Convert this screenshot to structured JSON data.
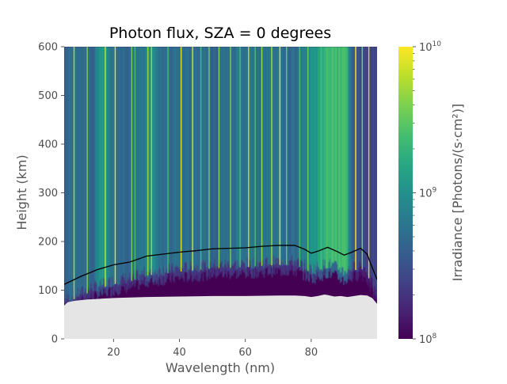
{
  "chart_data": {
    "type": "heatmap",
    "title": "Photon flux, SZA = 0 degrees",
    "xlabel": "Wavelength (nm)",
    "ylabel": "Height (km)",
    "xlim": [
      5,
      100
    ],
    "ylim": [
      0,
      600
    ],
    "xticks": [
      20,
      40,
      60,
      80
    ],
    "yticks": [
      0,
      100,
      200,
      300,
      400,
      500,
      600
    ],
    "colorbar": {
      "label": "Irradiance [Photons/(s·cm²)]",
      "scale": "log",
      "range": [
        100000000,
        10000000000
      ],
      "ticks": [
        {
          "base": "10",
          "exp": "8",
          "value": 100000000
        },
        {
          "base": "10",
          "exp": "9",
          "value": 1000000000
        },
        {
          "base": "10",
          "exp": "10",
          "value": 10000000000
        }
      ],
      "colormap": "viridis"
    },
    "grid": false,
    "log_flux_bands": {
      "wavelength_nm": [
        5,
        10,
        14,
        15.5,
        17,
        18.5,
        20,
        25,
        29.5,
        30.5,
        35,
        40,
        50,
        60,
        70,
        75,
        78,
        80,
        82,
        84,
        85,
        87.5,
        88.5,
        90,
        91,
        91.5,
        92,
        92.5,
        95,
        100
      ],
      "log10_flux_top": [
        8.7,
        8.75,
        8.6,
        9.05,
        9.15,
        8.9,
        8.75,
        8.7,
        8.8,
        9.1,
        8.7,
        8.75,
        8.7,
        8.8,
        8.75,
        8.7,
        8.85,
        9.0,
        9.15,
        9.3,
        9.35,
        9.4,
        9.4,
        9.35,
        9.3,
        8.9,
        8.7,
        8.6,
        8.45,
        8.4
      ]
    },
    "bright_lines_nm": [
      8,
      12,
      17.5,
      20.5,
      25.5,
      26.5,
      30.4,
      31.5,
      36.5,
      40.5,
      44,
      46.5,
      49,
      52,
      55.5,
      58.4,
      61,
      63,
      65,
      68,
      70.5,
      72.5,
      76.5,
      79,
      83,
      93.5,
      95.5,
      97.5
    ],
    "unit_optical_depth_line": {
      "wavelength_nm": [
        5,
        10,
        15,
        20,
        25,
        28,
        30,
        35,
        40,
        45,
        50,
        55,
        60,
        65,
        70,
        75,
        78,
        80,
        82,
        85,
        88,
        90,
        92,
        95,
        97,
        98,
        100
      ],
      "height_km": [
        112,
        128,
        142,
        152,
        158,
        165,
        170,
        174,
        178,
        181,
        185,
        186,
        187,
        190,
        192,
        192,
        184,
        176,
        180,
        188,
        179,
        172,
        177,
        186,
        174,
        155,
        122
      ]
    },
    "absorbed_boundary": {
      "wavelength_nm": [
        5,
        6,
        8,
        12,
        15,
        20,
        30,
        40,
        50,
        60,
        70,
        75,
        78,
        80,
        82,
        84,
        85,
        87,
        89,
        91,
        93,
        95,
        97,
        98.5,
        100
      ],
      "height_km": [
        68,
        75,
        78,
        81,
        82,
        84,
        86,
        87,
        88,
        88,
        89,
        89,
        88,
        86,
        88,
        91,
        90,
        87,
        88,
        86,
        88,
        90,
        89,
        84,
        72
      ]
    },
    "colors": {
      "background_region": "#e5e5e5",
      "line": "#000000",
      "text": "#4d4d4d",
      "title": "#000000",
      "axis_label": "#555555"
    }
  }
}
